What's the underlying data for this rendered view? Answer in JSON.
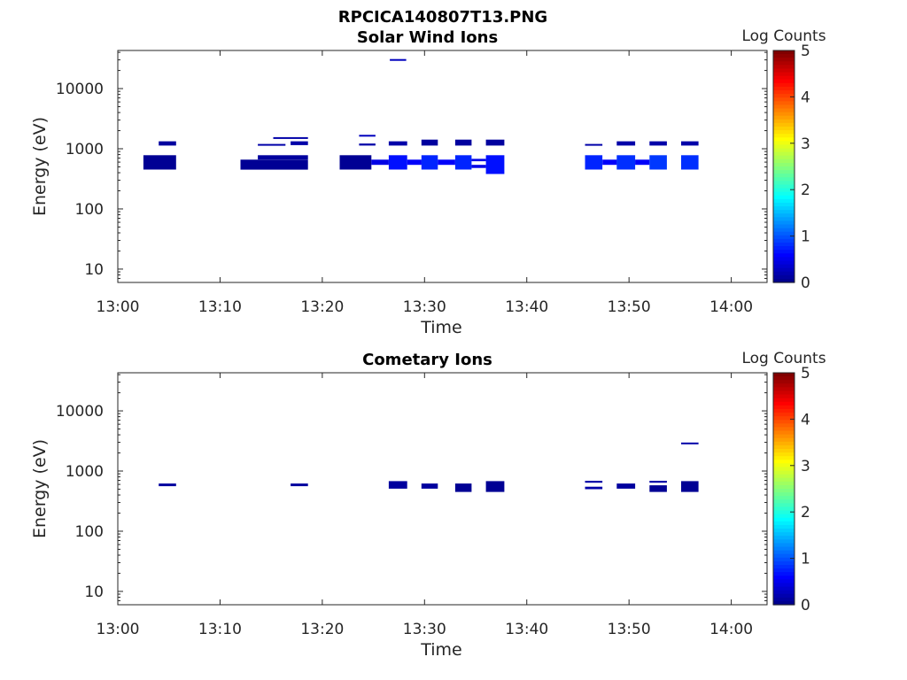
{
  "figure_title": "RPCICA140807T13.PNG",
  "chart_data": [
    {
      "type": "heatmap",
      "title": "Solar Wind Ions",
      "xlabel": "Time",
      "ylabel": "Energy (eV)",
      "x_tick_labels": [
        "13:00",
        "13:10",
        "13:20",
        "13:30",
        "13:40",
        "13:50",
        "14:00"
      ],
      "x_ticks_min": [
        0,
        10,
        20,
        30,
        40,
        50,
        60
      ],
      "xlim_min": [
        0,
        63.5
      ],
      "y_scale": "log",
      "y_tick_labels": [
        "10",
        "100",
        "1000",
        "10000"
      ],
      "y_ticks": [
        10,
        100,
        1000,
        10000
      ],
      "ylim": [
        6,
        43000
      ],
      "colorbar": {
        "label": "Log Counts",
        "min": 0,
        "max": 5,
        "ticks": [
          "0",
          "1",
          "2",
          "3",
          "4",
          "5"
        ]
      },
      "cells": [
        {
          "t0": 2.5,
          "t1": 5.7,
          "e0": 450,
          "e1": 780,
          "v": 0.1
        },
        {
          "t0": 4.0,
          "t1": 5.7,
          "e0": 1130,
          "e1": 1330,
          "v": 0.15
        },
        {
          "t0": 12.0,
          "t1": 18.6,
          "e0": 450,
          "e1": 660,
          "v": 0.1
        },
        {
          "t0": 13.7,
          "t1": 18.6,
          "e0": 660,
          "e1": 780,
          "v": 0.15
        },
        {
          "t0": 13.7,
          "t1": 16.4,
          "e0": 1130,
          "e1": 1200,
          "v": 0.2
        },
        {
          "t0": 15.2,
          "t1": 18.6,
          "e0": 1480,
          "e1": 1560,
          "v": 0.2
        },
        {
          "t0": 16.9,
          "t1": 18.6,
          "e0": 1150,
          "e1": 1330,
          "v": 0.2
        },
        {
          "t0": 21.7,
          "t1": 24.8,
          "e0": 450,
          "e1": 780,
          "v": 0.1
        },
        {
          "t0": 23.6,
          "t1": 25.2,
          "e0": 1130,
          "e1": 1220,
          "v": 0.2
        },
        {
          "t0": 23.6,
          "t1": 25.2,
          "e0": 1600,
          "e1": 1700,
          "v": 0.3
        },
        {
          "t0": 24.8,
          "t1": 26.5,
          "e0": 540,
          "e1": 660,
          "v": 0.5
        },
        {
          "t0": 26.5,
          "t1": 28.3,
          "e0": 450,
          "e1": 780,
          "v": 0.7
        },
        {
          "t0": 26.5,
          "t1": 28.3,
          "e0": 1130,
          "e1": 1330,
          "v": 0.2
        },
        {
          "t0": 26.6,
          "t1": 28.2,
          "e0": 29000,
          "e1": 31000,
          "v": 0.3
        },
        {
          "t0": 28.3,
          "t1": 29.7,
          "e0": 540,
          "e1": 660,
          "v": 0.6
        },
        {
          "t0": 29.7,
          "t1": 31.3,
          "e0": 450,
          "e1": 780,
          "v": 0.8
        },
        {
          "t0": 29.7,
          "t1": 31.3,
          "e0": 1130,
          "e1": 1420,
          "v": 0.15
        },
        {
          "t0": 31.3,
          "t1": 33.0,
          "e0": 540,
          "e1": 660,
          "v": 0.6
        },
        {
          "t0": 33.0,
          "t1": 34.6,
          "e0": 450,
          "e1": 780,
          "v": 0.8
        },
        {
          "t0": 33.0,
          "t1": 34.6,
          "e0": 1130,
          "e1": 1420,
          "v": 0.15
        },
        {
          "t0": 34.6,
          "t1": 36.0,
          "e0": 620,
          "e1": 680,
          "v": 0.5
        },
        {
          "t0": 34.6,
          "t1": 36.0,
          "e0": 480,
          "e1": 540,
          "v": 0.5
        },
        {
          "t0": 36.0,
          "t1": 37.8,
          "e0": 380,
          "e1": 780,
          "v": 0.7
        },
        {
          "t0": 36.0,
          "t1": 37.8,
          "e0": 1130,
          "e1": 1420,
          "v": 0.15
        },
        {
          "t0": 45.7,
          "t1": 47.4,
          "e0": 450,
          "e1": 780,
          "v": 0.8
        },
        {
          "t0": 45.7,
          "t1": 47.4,
          "e0": 1130,
          "e1": 1200,
          "v": 0.2
        },
        {
          "t0": 47.4,
          "t1": 48.8,
          "e0": 540,
          "e1": 660,
          "v": 0.6
        },
        {
          "t0": 48.8,
          "t1": 50.6,
          "e0": 450,
          "e1": 780,
          "v": 0.85
        },
        {
          "t0": 48.8,
          "t1": 50.6,
          "e0": 1130,
          "e1": 1330,
          "v": 0.2
        },
        {
          "t0": 50.6,
          "t1": 52.0,
          "e0": 540,
          "e1": 660,
          "v": 0.6
        },
        {
          "t0": 52.0,
          "t1": 53.7,
          "e0": 450,
          "e1": 780,
          "v": 0.9
        },
        {
          "t0": 52.0,
          "t1": 53.7,
          "e0": 1130,
          "e1": 1330,
          "v": 0.2
        },
        {
          "t0": 55.1,
          "t1": 56.8,
          "e0": 450,
          "e1": 780,
          "v": 0.85
        },
        {
          "t0": 55.1,
          "t1": 56.8,
          "e0": 1130,
          "e1": 1330,
          "v": 0.2
        }
      ]
    },
    {
      "type": "heatmap",
      "title": "Cometary Ions",
      "xlabel": "Time",
      "ylabel": "Energy (eV)",
      "x_tick_labels": [
        "13:00",
        "13:10",
        "13:20",
        "13:30",
        "13:40",
        "13:50",
        "14:00"
      ],
      "x_ticks_min": [
        0,
        10,
        20,
        30,
        40,
        50,
        60
      ],
      "xlim_min": [
        0,
        63.5
      ],
      "y_scale": "log",
      "y_tick_labels": [
        "10",
        "100",
        "1000",
        "10000"
      ],
      "y_ticks": [
        10,
        100,
        1000,
        10000
      ],
      "ylim": [
        6,
        43000
      ],
      "colorbar": {
        "label": "Log Counts",
        "min": 0,
        "max": 5,
        "ticks": [
          "0",
          "1",
          "2",
          "3",
          "4",
          "5"
        ]
      },
      "cells": [
        {
          "t0": 4.0,
          "t1": 5.7,
          "e0": 560,
          "e1": 620,
          "v": 0.15
        },
        {
          "t0": 16.9,
          "t1": 18.6,
          "e0": 560,
          "e1": 620,
          "v": 0.15
        },
        {
          "t0": 26.5,
          "t1": 28.3,
          "e0": 510,
          "e1": 680,
          "v": 0.15
        },
        {
          "t0": 29.7,
          "t1": 31.3,
          "e0": 510,
          "e1": 620,
          "v": 0.15
        },
        {
          "t0": 33.0,
          "t1": 34.6,
          "e0": 450,
          "e1": 620,
          "v": 0.1
        },
        {
          "t0": 36.0,
          "t1": 37.8,
          "e0": 450,
          "e1": 680,
          "v": 0.1
        },
        {
          "t0": 45.7,
          "t1": 47.4,
          "e0": 640,
          "e1": 690,
          "v": 0.2
        },
        {
          "t0": 45.7,
          "t1": 47.4,
          "e0": 500,
          "e1": 550,
          "v": 0.2
        },
        {
          "t0": 48.8,
          "t1": 50.6,
          "e0": 510,
          "e1": 620,
          "v": 0.15
        },
        {
          "t0": 52.0,
          "t1": 53.7,
          "e0": 450,
          "e1": 580,
          "v": 0.1
        },
        {
          "t0": 52.0,
          "t1": 53.7,
          "e0": 640,
          "e1": 690,
          "v": 0.2
        },
        {
          "t0": 55.1,
          "t1": 56.8,
          "e0": 450,
          "e1": 680,
          "v": 0.1
        },
        {
          "t0": 55.1,
          "t1": 56.8,
          "e0": 2800,
          "e1": 2980,
          "v": 0.2
        }
      ]
    }
  ]
}
